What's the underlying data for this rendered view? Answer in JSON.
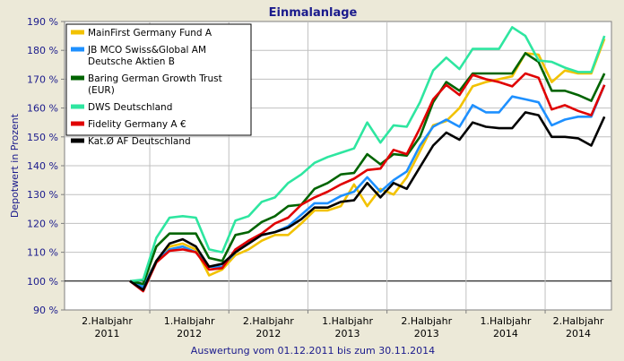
{
  "chart_data": {
    "type": "line",
    "title": "Einmalanlage",
    "ylabel": "Depotwert in Prozent",
    "xlabel": "Auswertung vom 01.12.2011 bis zum 30.11.2014",
    "ylim": [
      90,
      190
    ],
    "yticks": [
      90,
      100,
      110,
      120,
      130,
      140,
      150,
      160,
      170,
      180,
      190
    ],
    "ytick_labels": [
      "90 %",
      "100 %",
      "110 %",
      "120 %",
      "130 %",
      "140 %",
      "150 %",
      "160 %",
      "170 %",
      "180 %",
      "190 %"
    ],
    "x_periods": [
      {
        "line1": "2.Halbjahr",
        "line2": "2011"
      },
      {
        "line1": "1.Halbjahr",
        "line2": "2012"
      },
      {
        "line1": "2.Halbjahr",
        "line2": "2012"
      },
      {
        "line1": "1.Halbjahr",
        "line2": "2013"
      },
      {
        "line1": "2.Halbjahr",
        "line2": "2013"
      },
      {
        "line1": "1.Halbjahr",
        "line2": "2014"
      },
      {
        "line1": "2.Halbjahr",
        "line2": "2014"
      }
    ],
    "x": [
      "2011-11",
      "2011-12",
      "2012-01",
      "2012-02",
      "2012-03",
      "2012-04",
      "2012-05",
      "2012-06",
      "2012-07",
      "2012-08",
      "2012-09",
      "2012-10",
      "2012-11",
      "2012-12",
      "2013-01",
      "2013-02",
      "2013-03",
      "2013-04",
      "2013-05",
      "2013-06",
      "2013-07",
      "2013-08",
      "2013-09",
      "2013-10",
      "2013-11",
      "2013-12",
      "2014-01",
      "2014-02",
      "2014-03",
      "2014-04",
      "2014-05",
      "2014-06",
      "2014-07",
      "2014-08",
      "2014-09",
      "2014-10",
      "2014-11"
    ],
    "grid": true,
    "legend_position": "top-left",
    "series": [
      {
        "name": "MainFirst Germany Fund A",
        "color": "#f2c200",
        "values": [
          100,
          98.5,
          107,
          112,
          113,
          111,
          102,
          104,
          109,
          111,
          114,
          116,
          116,
          120,
          124.5,
          124.5,
          126,
          133.5,
          126,
          132,
          130,
          136,
          145,
          154,
          155.5,
          160,
          167.5,
          169,
          170,
          171,
          179,
          178.5,
          169,
          173,
          172,
          172,
          184
        ]
      },
      {
        "name": "JB MCO Swiss&Global AM Deutsche Aktien B",
        "color": "#1e90ff",
        "values": [
          100,
          98,
          107,
          111,
          112,
          110,
          105,
          105,
          110,
          114,
          116,
          117,
          119,
          123,
          127,
          127,
          129.5,
          131,
          136,
          131,
          135,
          138,
          147,
          153.5,
          156,
          153.5,
          161,
          158.5,
          158.5,
          164,
          163,
          162,
          154,
          156,
          157,
          157,
          168
        ]
      },
      {
        "name": "Baring German Growth Trust (EUR)",
        "color": "#006400",
        "values": [
          100,
          99,
          112,
          116.5,
          116.5,
          116.5,
          108,
          107,
          116,
          117,
          120.5,
          122.5,
          126,
          126.5,
          132,
          134,
          137,
          137.5,
          144,
          140.5,
          144,
          143.5,
          150,
          162,
          169,
          166,
          172,
          172,
          172,
          172,
          179,
          176,
          166,
          166,
          164.5,
          162.5,
          172
        ]
      },
      {
        "name": "DWS Deutschland",
        "color": "#2ee6a0",
        "values": [
          100,
          100.5,
          115,
          122,
          122.5,
          122,
          111,
          110,
          121,
          122.5,
          127.5,
          129,
          134,
          137,
          141,
          143,
          144.5,
          146,
          155,
          148,
          154,
          153.5,
          162,
          173,
          177.5,
          173.5,
          180.5,
          180.5,
          180.5,
          188,
          185,
          176.5,
          176,
          174,
          172.5,
          172.5,
          185
        ]
      },
      {
        "name": "Fidelity Germany A €",
        "color": "#e00000",
        "values": [
          100,
          96.5,
          106.5,
          110.5,
          111,
          110,
          104,
          104.5,
          111,
          114,
          116.5,
          120,
          122,
          126.5,
          129,
          131,
          133.5,
          135.5,
          138.5,
          139,
          145.5,
          144,
          153,
          163,
          168,
          164.5,
          171.5,
          170,
          169,
          167.5,
          172,
          170.5,
          159.5,
          161,
          159,
          157.5,
          168
        ]
      },
      {
        "name": "Kat.Ø AF Deutschland",
        "color": "#000000",
        "values": [
          100,
          97,
          107,
          113,
          114.5,
          112,
          105,
          106,
          110,
          113,
          116,
          117,
          118.5,
          121.5,
          125.5,
          125.5,
          127.5,
          128,
          134,
          129,
          134,
          132,
          139.5,
          147,
          151.5,
          149,
          155,
          153.5,
          153,
          153,
          158.5,
          157.5,
          150,
          150,
          149.5,
          147,
          157
        ]
      }
    ]
  }
}
